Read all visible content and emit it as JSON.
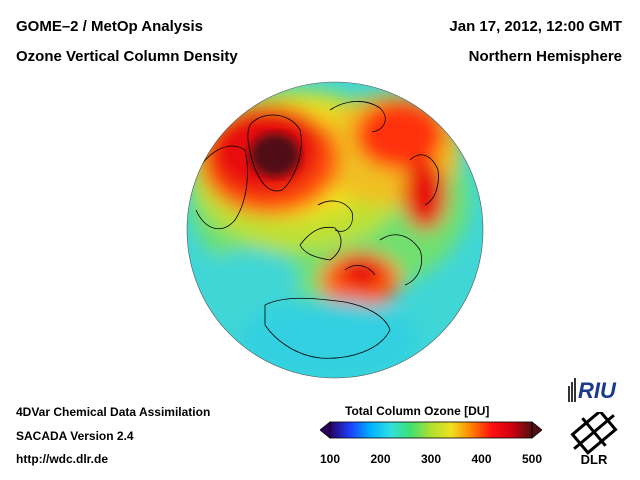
{
  "header": {
    "title_left": "GOME–2 / MetOp Analysis",
    "subtitle_left": "Ozone Vertical Column Density",
    "title_right": "Jan 17, 2012, 12:00 GMT",
    "subtitle_right": "Northern Hemisphere"
  },
  "footer": {
    "line1": "4DVar Chemical Data Assimilation",
    "line2": "SACADA Version 2.4",
    "url": "http://wdc.dlr.de"
  },
  "colorbar": {
    "title": "Total Column Ozone [DU]",
    "ticks": [
      "100",
      "200",
      "300",
      "400",
      "500"
    ],
    "min": 100,
    "max": 500,
    "colors": [
      "#2a0060",
      "#1a40ff",
      "#00b0ff",
      "#30e0e0",
      "#40e070",
      "#b0e030",
      "#f0e020",
      "#ff8000",
      "#ff1010",
      "#d00010",
      "#501010"
    ]
  },
  "logos": {
    "riu": "RIU",
    "dlr": "DLR"
  }
}
